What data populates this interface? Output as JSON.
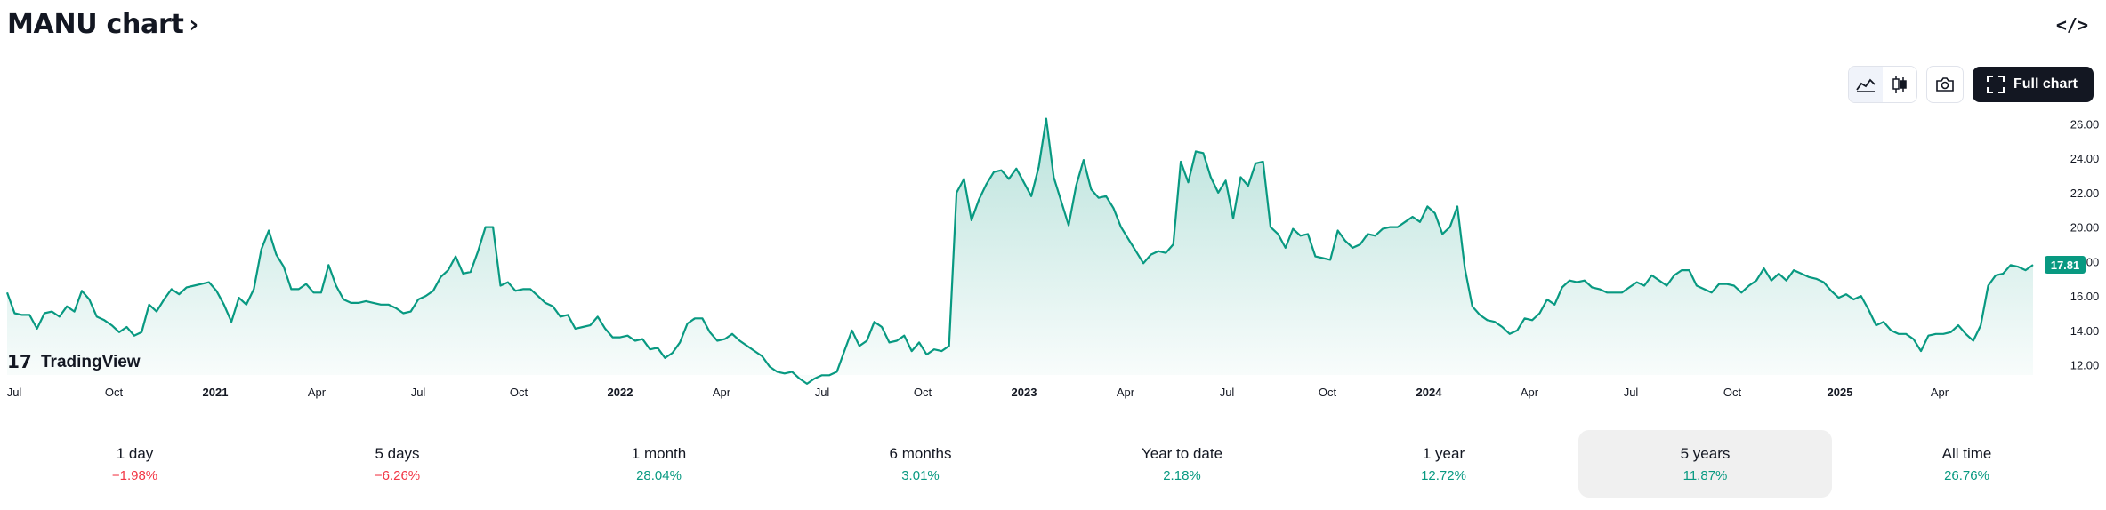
{
  "header": {
    "title": "MANU chart",
    "title_chevron": "›",
    "embed_icon": "code-icon",
    "embed_label": "</>"
  },
  "toolbar": {
    "area_icon": "area-chart-icon",
    "candle_icon": "candlestick-icon",
    "camera_icon": "camera-icon",
    "fullscreen_icon": "expand-icon",
    "full_chart_label": "Full chart"
  },
  "logo": {
    "text": "TradingView",
    "mark": "17"
  },
  "colors": {
    "line": "#089981",
    "fill_top": "#089981",
    "price_badge": "#089981",
    "negative": "#f23645",
    "positive": "#089981"
  },
  "chart_data": {
    "type": "area",
    "series": [
      {
        "values": [
          16.2,
          15.0,
          14.9,
          14.9,
          14.1,
          15.0,
          15.1,
          14.8,
          15.4,
          15.1,
          16.3,
          15.8,
          14.8,
          14.6,
          14.3,
          13.9,
          14.2,
          13.7,
          13.9,
          15.5,
          15.1,
          15.8,
          16.4,
          16.1,
          16.5,
          16.6,
          16.7,
          16.8,
          16.3,
          15.5,
          14.5,
          15.9,
          15.5,
          16.4,
          18.7,
          19.8,
          18.4,
          17.7,
          16.4,
          16.4,
          16.7,
          16.2,
          16.2,
          17.8,
          16.6,
          15.8,
          15.6,
          15.6,
          15.7,
          15.6,
          15.5,
          15.5,
          15.3,
          15.0,
          15.1,
          15.8,
          16.0,
          16.3,
          17.1,
          17.5,
          18.3,
          17.3,
          17.4,
          18.6,
          20.0,
          20.0,
          16.6,
          16.8,
          16.3,
          16.4,
          16.4,
          16.0,
          15.6,
          15.4,
          14.8,
          14.9,
          14.1,
          14.2,
          14.3,
          14.8,
          14.1,
          13.6,
          13.6,
          13.7,
          13.4,
          13.5,
          12.9,
          13.0,
          12.4,
          12.7,
          13.3,
          14.4,
          14.7,
          14.7,
          13.9,
          13.4,
          13.5,
          13.8,
          13.4,
          13.1,
          12.8,
          12.5,
          11.9,
          11.6,
          11.5,
          11.6,
          11.2,
          10.9,
          11.2,
          11.4,
          11.4,
          11.6,
          12.8,
          14.0,
          13.1,
          13.4,
          14.5,
          14.2,
          13.3,
          13.4,
          13.7,
          12.8,
          13.3,
          12.6,
          12.9,
          12.8,
          13.1,
          22.0,
          22.8,
          20.4,
          21.6,
          22.5,
          23.2,
          23.3,
          22.8,
          23.4,
          22.6,
          21.8,
          23.5,
          26.3,
          22.9,
          21.5,
          20.1,
          22.4,
          23.9,
          22.2,
          21.7,
          21.8,
          21.1,
          20.0,
          19.3,
          18.6,
          17.9,
          18.4,
          18.6,
          18.5,
          19.0,
          23.8,
          22.6,
          24.4,
          24.3,
          22.9,
          22.0,
          22.7,
          20.5,
          22.9,
          22.4,
          23.7,
          23.8,
          20.0,
          19.6,
          18.8,
          19.9,
          19.5,
          19.6,
          18.3,
          18.2,
          18.1,
          19.8,
          19.2,
          18.8,
          19.0,
          19.6,
          19.5,
          19.9,
          20.0,
          20.0,
          20.3,
          20.6,
          20.3,
          21.2,
          20.8,
          19.6,
          20.0,
          21.2,
          17.6,
          15.4,
          14.9,
          14.6,
          14.5,
          14.2,
          13.8,
          14.0,
          14.7,
          14.6,
          15.0,
          15.8,
          15.5,
          16.5,
          16.9,
          16.8,
          16.9,
          16.5,
          16.4,
          16.2,
          16.2,
          16.2,
          16.5,
          16.8,
          16.6,
          17.2,
          16.9,
          16.6,
          17.2,
          17.5,
          17.5,
          16.6,
          16.4,
          16.2,
          16.7,
          16.7,
          16.6,
          16.2,
          16.6,
          16.9,
          17.6,
          16.9,
          17.3,
          16.9,
          17.5,
          17.3,
          17.1,
          17.0,
          16.8,
          16.3,
          15.9,
          16.1,
          15.8,
          16.0,
          15.2,
          14.3,
          14.5,
          14.0,
          13.8,
          13.8,
          13.5,
          12.8,
          13.7,
          13.8,
          13.8,
          13.9,
          14.3,
          13.8,
          13.4,
          14.3,
          16.6,
          17.2,
          17.3,
          17.8,
          17.7,
          17.5,
          17.81
        ]
      }
    ],
    "last_price": "17.81",
    "ylim": [
      11,
      27
    ],
    "y_ticks": [
      "26.00",
      "24.00",
      "22.00",
      "20.00",
      "18.00",
      "16.00",
      "14.00",
      "12.00"
    ],
    "x_ticks": [
      {
        "label": "Jul",
        "bold": false
      },
      {
        "label": "Oct",
        "bold": false
      },
      {
        "label": "2021",
        "bold": true
      },
      {
        "label": "Apr",
        "bold": false
      },
      {
        "label": "Jul",
        "bold": false
      },
      {
        "label": "Oct",
        "bold": false
      },
      {
        "label": "2022",
        "bold": true
      },
      {
        "label": "Apr",
        "bold": false
      },
      {
        "label": "Jul",
        "bold": false
      },
      {
        "label": "Oct",
        "bold": false
      },
      {
        "label": "2023",
        "bold": true
      },
      {
        "label": "Apr",
        "bold": false
      },
      {
        "label": "Jul",
        "bold": false
      },
      {
        "label": "Oct",
        "bold": false
      },
      {
        "label": "2024",
        "bold": true
      },
      {
        "label": "Apr",
        "bold": false
      },
      {
        "label": "Jul",
        "bold": false
      },
      {
        "label": "Oct",
        "bold": false
      },
      {
        "label": "2025",
        "bold": true
      },
      {
        "label": "Apr",
        "bold": false
      }
    ],
    "grid": false
  },
  "periods": [
    {
      "label": "1 day",
      "value": "−1.98%",
      "sign": "neg"
    },
    {
      "label": "5 days",
      "value": "−6.26%",
      "sign": "neg"
    },
    {
      "label": "1 month",
      "value": "28.04%",
      "sign": "pos"
    },
    {
      "label": "6 months",
      "value": "3.01%",
      "sign": "pos"
    },
    {
      "label": "Year to date",
      "value": "2.18%",
      "sign": "pos"
    },
    {
      "label": "1 year",
      "value": "12.72%",
      "sign": "pos"
    },
    {
      "label": "5 years",
      "value": "11.87%",
      "sign": "pos",
      "selected": true
    },
    {
      "label": "All time",
      "value": "26.76%",
      "sign": "pos"
    }
  ]
}
